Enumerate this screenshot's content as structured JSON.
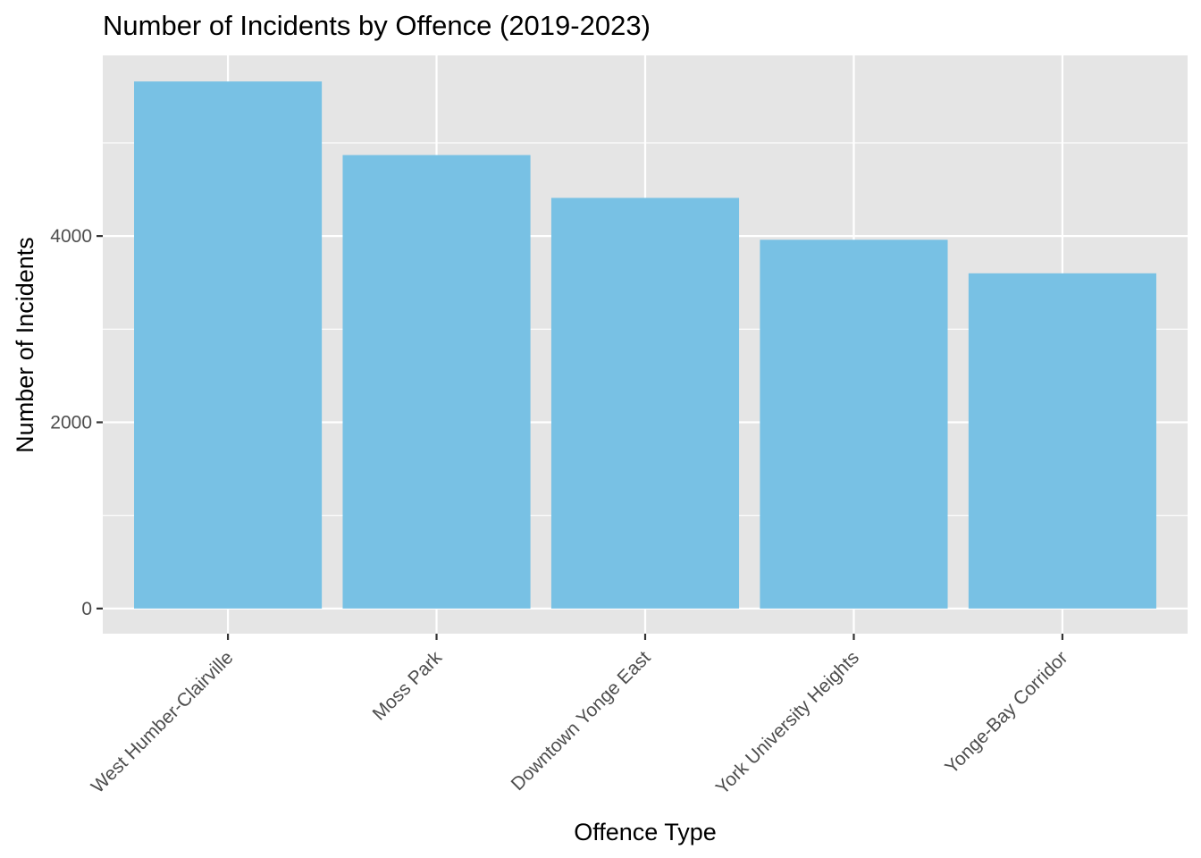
{
  "chart_data": {
    "type": "bar",
    "title": "Number of Incidents by Offence (2019-2023)",
    "xlabel": "Offence Type",
    "ylabel": "Number of Incidents",
    "categories": [
      "West Humber-Clairville",
      "Moss Park",
      "Downtown Yonge East",
      "York University Heights",
      "Yonge-Bay Corridor"
    ],
    "values": [
      5660,
      4870,
      4410,
      3960,
      3600
    ],
    "ylim": [
      -270,
      5940
    ],
    "yticks": [
      0,
      2000,
      4000
    ],
    "ytick_labels": [
      "0",
      "2000",
      "4000"
    ],
    "grid": true,
    "legend": "none",
    "colors": {
      "bar": "#78C1E4",
      "panel_background": "#E5E5E5",
      "grid": "#FFFFFF",
      "tick_text": "#4D4D4D",
      "tick_mark": "#333333"
    }
  }
}
